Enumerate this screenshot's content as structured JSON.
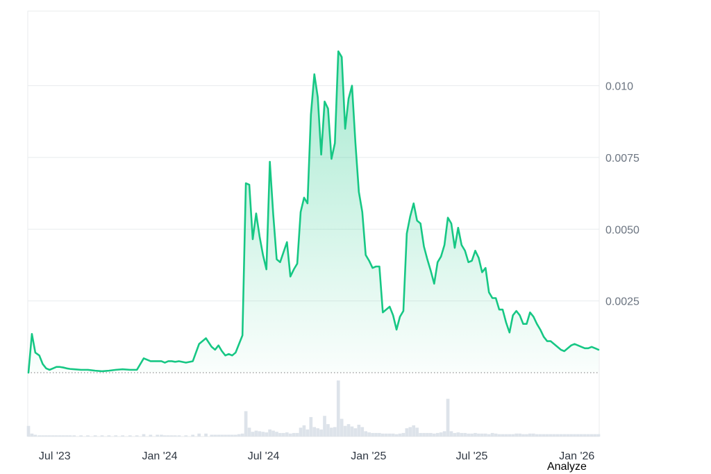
{
  "chart_data": {
    "type": "area",
    "x": [
      "2023-05-16",
      "2023-05-22",
      "2023-05-28",
      "2023-06-04",
      "2023-06-10",
      "2023-06-16",
      "2023-06-22",
      "2023-06-28",
      "2023-07-04",
      "2023-07-10",
      "2023-07-16",
      "2023-07-22",
      "2023-07-28",
      "2023-08-04",
      "2023-08-16",
      "2023-08-28",
      "2023-09-10",
      "2023-09-22",
      "2023-10-04",
      "2023-10-16",
      "2023-10-28",
      "2023-11-10",
      "2023-11-22",
      "2023-12-04",
      "2023-12-16",
      "2023-12-28",
      "2024-01-04",
      "2024-01-10",
      "2024-01-16",
      "2024-01-22",
      "2024-01-28",
      "2024-02-04",
      "2024-02-16",
      "2024-02-28",
      "2024-03-10",
      "2024-03-22",
      "2024-04-01",
      "2024-04-07",
      "2024-04-13",
      "2024-04-19",
      "2024-04-25",
      "2024-05-01",
      "2024-05-07",
      "2024-05-13",
      "2024-05-19",
      "2024-05-25",
      "2024-05-31",
      "2024-06-06",
      "2024-06-12",
      "2024-06-18",
      "2024-06-24",
      "2024-06-30",
      "2024-07-06",
      "2024-07-12",
      "2024-07-18",
      "2024-07-24",
      "2024-07-30",
      "2024-08-05",
      "2024-08-11",
      "2024-08-17",
      "2024-08-23",
      "2024-08-29",
      "2024-09-04",
      "2024-09-10",
      "2024-09-16",
      "2024-09-22",
      "2024-09-28",
      "2024-10-04",
      "2024-10-10",
      "2024-10-16",
      "2024-10-22",
      "2024-10-28",
      "2024-11-03",
      "2024-11-09",
      "2024-11-15",
      "2024-11-21",
      "2024-11-27",
      "2024-12-03",
      "2024-12-09",
      "2024-12-15",
      "2024-12-21",
      "2024-12-27",
      "2025-01-02",
      "2025-01-08",
      "2025-01-14",
      "2025-01-20",
      "2025-01-26",
      "2025-02-01",
      "2025-02-07",
      "2025-02-13",
      "2025-02-19",
      "2025-02-25",
      "2025-03-03",
      "2025-03-09",
      "2025-03-15",
      "2025-03-21",
      "2025-03-27",
      "2025-04-02",
      "2025-04-08",
      "2025-04-14",
      "2025-04-20",
      "2025-04-26",
      "2025-05-02",
      "2025-05-08",
      "2025-05-14",
      "2025-05-20",
      "2025-05-26",
      "2025-06-01",
      "2025-06-07",
      "2025-06-13",
      "2025-06-19",
      "2025-06-25",
      "2025-07-01",
      "2025-07-07",
      "2025-07-13",
      "2025-07-19",
      "2025-07-25",
      "2025-07-31",
      "2025-08-06",
      "2025-08-12",
      "2025-08-18",
      "2025-08-24",
      "2025-08-30",
      "2025-09-05",
      "2025-09-11",
      "2025-09-17",
      "2025-09-23",
      "2025-09-29",
      "2025-10-05",
      "2025-10-11",
      "2025-10-17",
      "2025-10-23",
      "2025-10-29",
      "2025-11-04",
      "2025-11-10",
      "2025-11-16",
      "2025-11-22",
      "2025-11-28",
      "2025-12-04",
      "2025-12-10",
      "2025-12-16",
      "2025-12-22",
      "2025-12-28",
      "2026-01-03",
      "2026-01-09",
      "2026-01-15",
      "2026-01-21",
      "2026-01-27",
      "2026-02-02",
      "2026-02-08"
    ],
    "series": [
      {
        "values": [
          0.0,
          0.00135,
          0.0007,
          0.0006,
          0.0003,
          0.00015,
          0.0001,
          0.00015,
          0.0002,
          0.0002,
          0.00018,
          0.00015,
          0.00013,
          0.00012,
          0.0001,
          0.0001,
          7e-05,
          5e-05,
          7e-05,
          0.0001,
          0.00012,
          0.0001,
          0.0001,
          0.0005,
          0.0004,
          0.0004,
          0.0004,
          0.00035,
          0.0004,
          0.0004,
          0.00038,
          0.0004,
          0.00035,
          0.0004,
          0.001,
          0.0012,
          0.0009,
          0.0008,
          0.00095,
          0.00075,
          0.0006,
          0.00065,
          0.0006,
          0.0007,
          0.001,
          0.0013,
          0.0066,
          0.00655,
          0.00465,
          0.00555,
          0.00475,
          0.0041,
          0.0036,
          0.00735,
          0.0055,
          0.00395,
          0.00385,
          0.0042,
          0.00455,
          0.00335,
          0.0036,
          0.0038,
          0.0056,
          0.0061,
          0.0059,
          0.009,
          0.0104,
          0.0096,
          0.0076,
          0.00945,
          0.0092,
          0.00745,
          0.008,
          0.0112,
          0.011,
          0.0085,
          0.00955,
          0.01,
          0.008,
          0.0063,
          0.0056,
          0.0041,
          0.0039,
          0.00365,
          0.0037,
          0.0037,
          0.0021,
          0.0022,
          0.0023,
          0.002,
          0.0015,
          0.00195,
          0.00215,
          0.00485,
          0.00545,
          0.0059,
          0.0053,
          0.0052,
          0.0044,
          0.00395,
          0.00355,
          0.0031,
          0.00385,
          0.00405,
          0.00445,
          0.0054,
          0.0052,
          0.00435,
          0.00505,
          0.00445,
          0.00425,
          0.00385,
          0.0039,
          0.00425,
          0.004,
          0.0035,
          0.00365,
          0.0028,
          0.0026,
          0.0026,
          0.0022,
          0.0022,
          0.00175,
          0.0014,
          0.002,
          0.00215,
          0.002,
          0.0017,
          0.0017,
          0.0021,
          0.00195,
          0.0017,
          0.0015,
          0.00125,
          0.0011,
          0.0011,
          0.001,
          0.0009,
          0.0008,
          0.00075,
          0.00085,
          0.00095,
          0.001,
          0.00095,
          0.0009,
          0.00085,
          0.00085,
          0.0009,
          0.00085,
          0.0008
        ],
        "volumes": [
          0.18,
          0.05,
          0.03,
          0.02,
          0.02,
          0.02,
          0.02,
          0.02,
          0.02,
          0.02,
          0.02,
          0.02,
          0.02,
          0.02,
          0.02,
          0.02,
          0.02,
          0.02,
          0.02,
          0.02,
          0.02,
          0.02,
          0.02,
          0.04,
          0.03,
          0.03,
          0.03,
          0.02,
          0.02,
          0.02,
          0.02,
          0.02,
          0.02,
          0.03,
          0.05,
          0.05,
          0.03,
          0.03,
          0.03,
          0.03,
          0.03,
          0.03,
          0.03,
          0.03,
          0.04,
          0.05,
          0.43,
          0.15,
          0.08,
          0.1,
          0.09,
          0.08,
          0.07,
          0.12,
          0.1,
          0.08,
          0.06,
          0.06,
          0.07,
          0.05,
          0.06,
          0.06,
          0.15,
          0.19,
          0.12,
          0.33,
          0.16,
          0.14,
          0.12,
          0.35,
          0.21,
          0.15,
          0.16,
          0.95,
          0.3,
          0.18,
          0.21,
          0.17,
          0.14,
          0.2,
          0.16,
          0.09,
          0.07,
          0.06,
          0.06,
          0.06,
          0.05,
          0.05,
          0.05,
          0.05,
          0.04,
          0.05,
          0.06,
          0.14,
          0.16,
          0.19,
          0.15,
          0.06,
          0.06,
          0.06,
          0.06,
          0.05,
          0.06,
          0.07,
          0.09,
          0.64,
          0.09,
          0.06,
          0.07,
          0.06,
          0.06,
          0.05,
          0.05,
          0.06,
          0.05,
          0.05,
          0.05,
          0.04,
          0.06,
          0.05,
          0.04,
          0.04,
          0.04,
          0.04,
          0.04,
          0.05,
          0.05,
          0.04,
          0.04,
          0.05,
          0.05,
          0.04,
          0.04,
          0.04,
          0.04,
          0.04,
          0.04,
          0.04,
          0.04,
          0.04,
          0.04,
          0.04,
          0.04,
          0.04,
          0.04,
          0.04,
          0.04,
          0.04,
          0.04,
          0.04
        ]
      }
    ],
    "x_ticks": [
      {
        "date": "2023-07-01",
        "label": "Jul '23"
      },
      {
        "date": "2024-01-01",
        "label": "Jan '24"
      },
      {
        "date": "2024-07-01",
        "label": "Jul '24"
      },
      {
        "date": "2025-01-01",
        "label": "Jan '25"
      },
      {
        "date": "2025-07-01",
        "label": "Jul '25"
      },
      {
        "date": "2026-01-01",
        "label": "Jan '26"
      }
    ],
    "y_ticks": [
      {
        "value": 0.0025,
        "label": "0.0025"
      },
      {
        "value": 0.005,
        "label": "0.0050"
      },
      {
        "value": 0.0075,
        "label": "0.0075"
      },
      {
        "value": 0.01,
        "label": "0.010"
      }
    ],
    "xlim": [
      "2023-05-16",
      "2026-02-08"
    ],
    "ylim": [
      0,
      0.0126
    ],
    "grid": "horizontal",
    "y_axis_side": "right",
    "baseline": "dotted",
    "volume_bars": true
  },
  "colors": {
    "line": "#16c784",
    "area_top": "#16c784",
    "grid": "#e8ebee",
    "volume": "#dde3ea",
    "baseline": "#777777"
  },
  "footer": {
    "analyze_label": "Analyze"
  }
}
